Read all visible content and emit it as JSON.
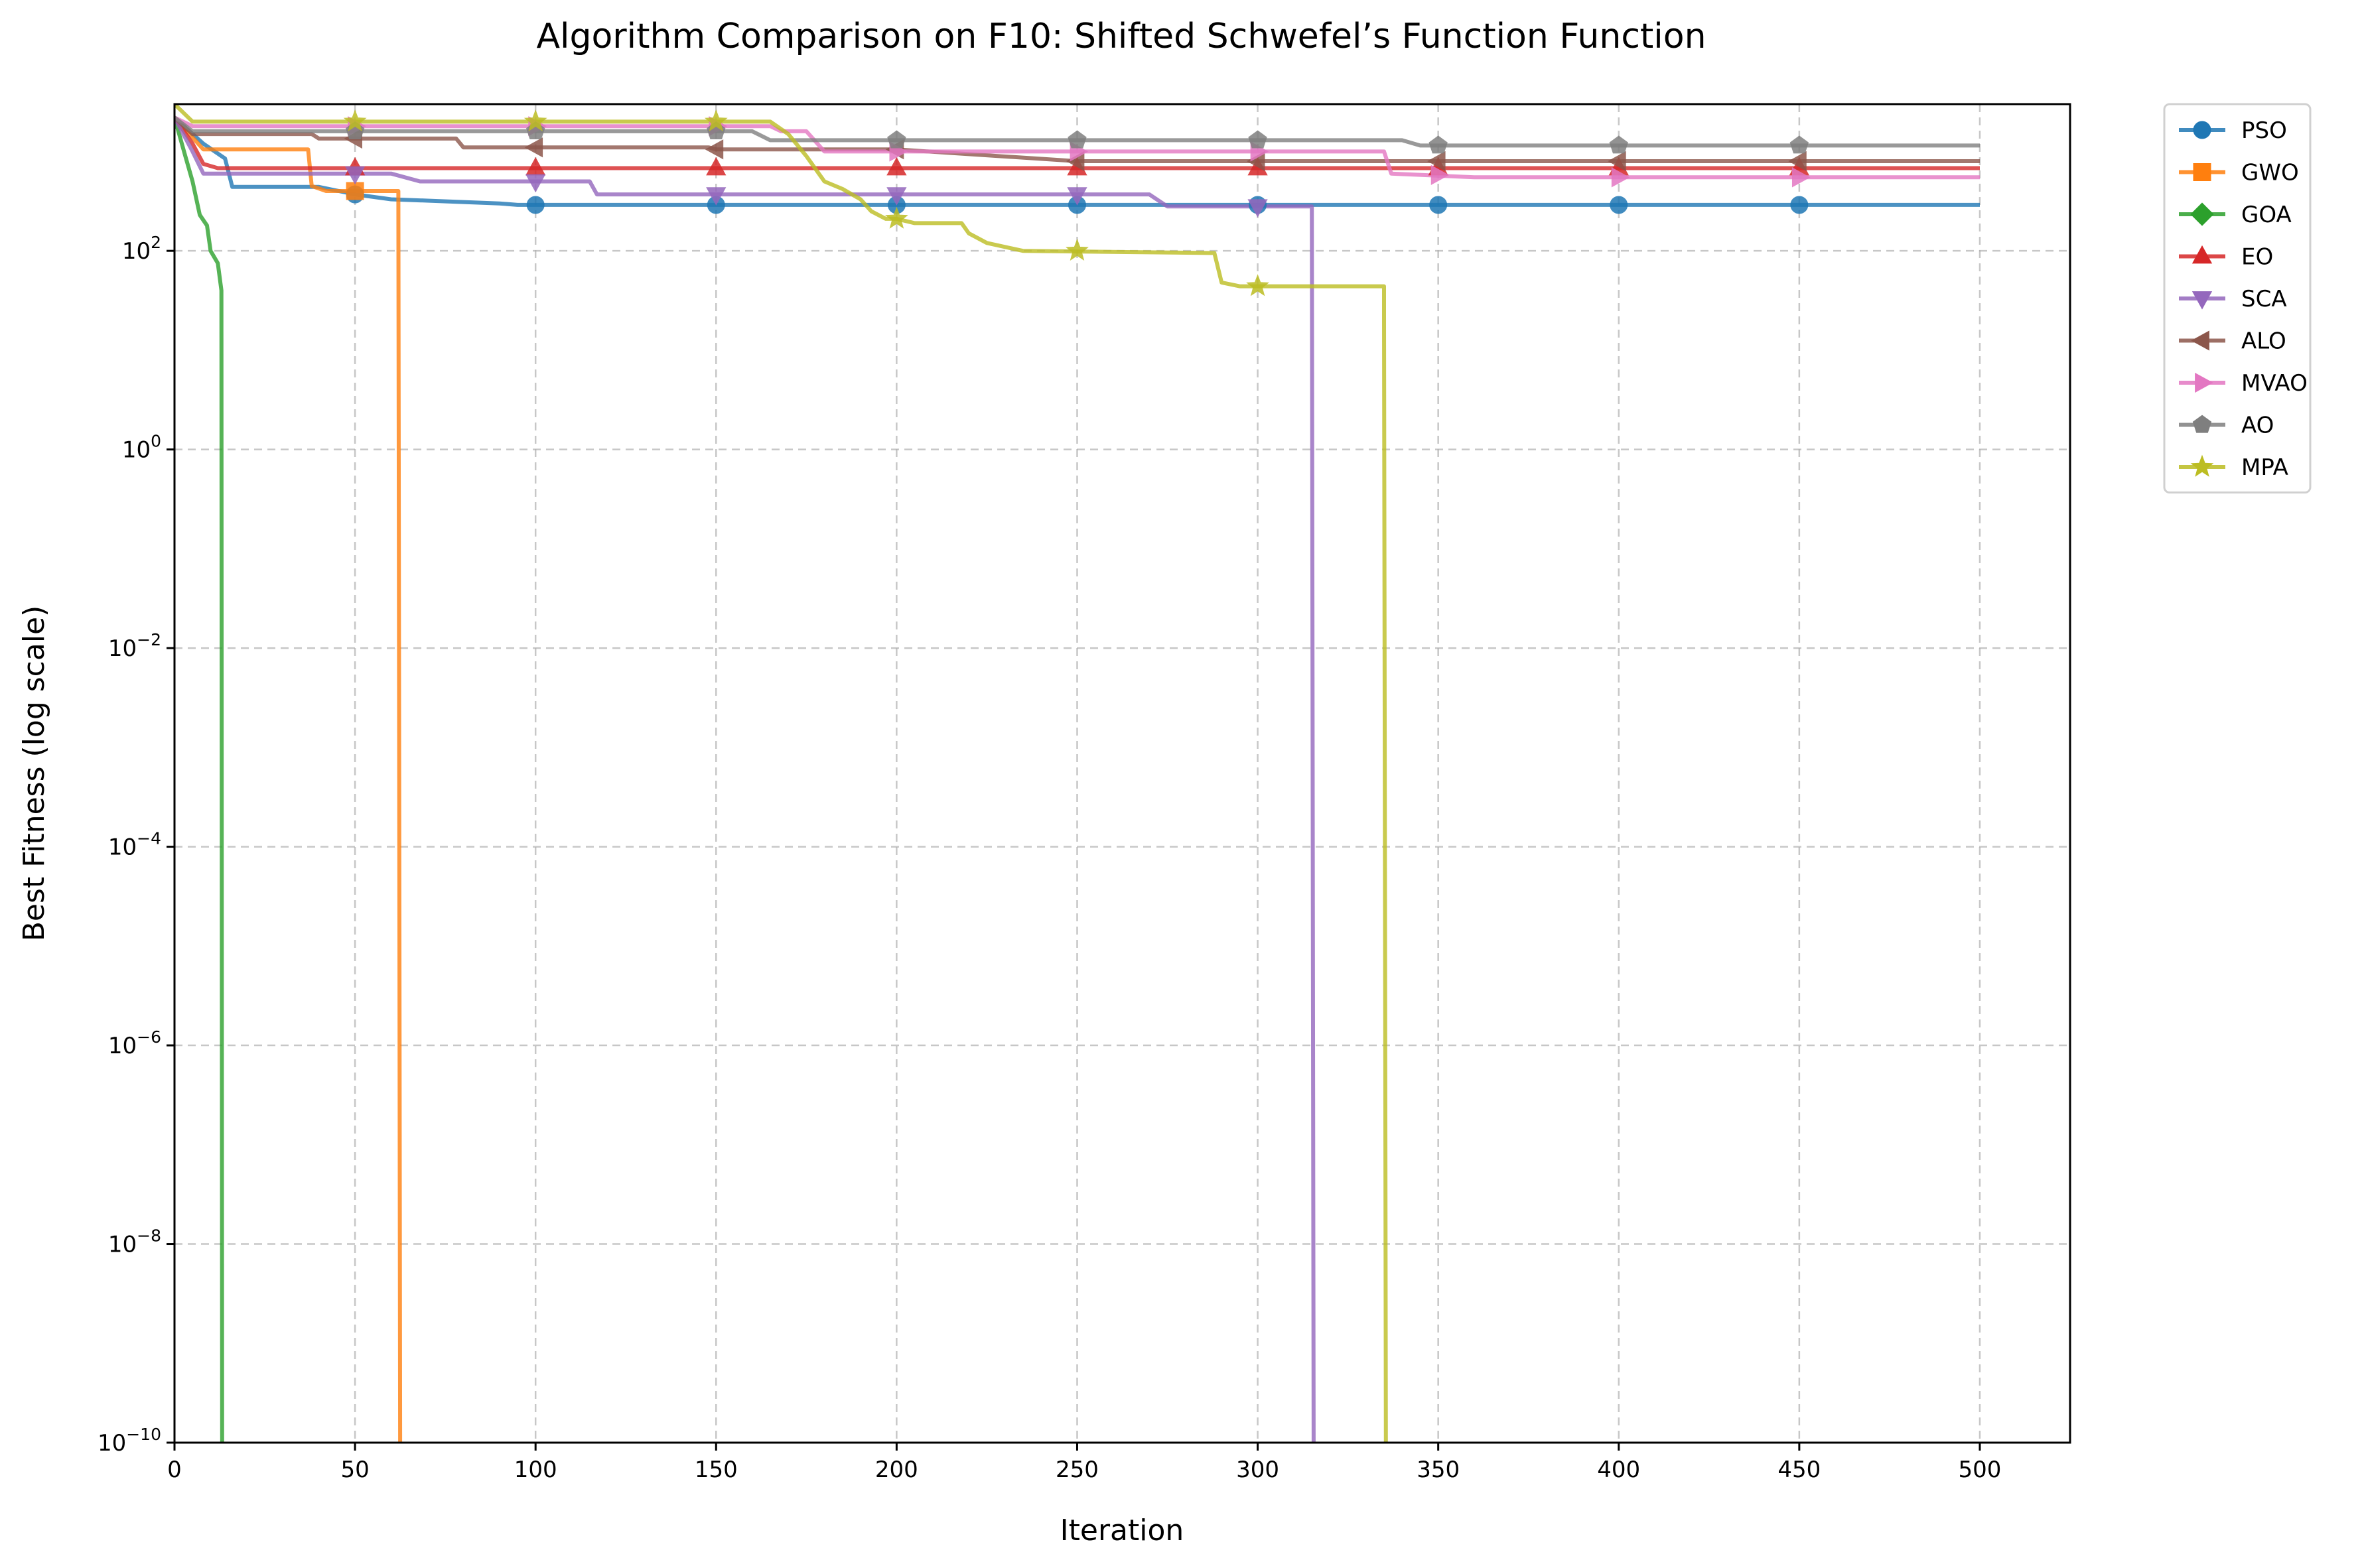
{
  "chart_data": {
    "type": "line",
    "title": "Algorithm Comparison on F10: Shifted Schwefel’s Function Function",
    "xlabel": "Iteration",
    "ylabel": "Best Fitness (log scale)",
    "xlim": [
      0,
      525
    ],
    "ylim": [
      1e-10,
      3000
    ],
    "yscale": "log",
    "grid": true,
    "legend_position": "outside-right-top",
    "x_ticks": [
      0,
      50,
      100,
      150,
      200,
      250,
      300,
      350,
      400,
      450,
      500
    ],
    "y_ticks": [
      {
        "value": 1e-10,
        "base": "10",
        "exp": "−10"
      },
      {
        "value": 1e-08,
        "base": "10",
        "exp": "−8"
      },
      {
        "value": 1e-06,
        "base": "10",
        "exp": "−6"
      },
      {
        "value": 0.0001,
        "base": "10",
        "exp": "−4"
      },
      {
        "value": 0.01,
        "base": "10",
        "exp": "−2"
      },
      {
        "value": 1,
        "base": "10",
        "exp": "0"
      },
      {
        "value": 100,
        "base": "10",
        "exp": "2"
      }
    ],
    "series": [
      {
        "name": "PSO",
        "color": "#1f77b4",
        "marker": "circle",
        "points": [
          [
            0,
            2200
          ],
          [
            8,
            1200
          ],
          [
            14,
            850
          ],
          [
            16,
            440
          ],
          [
            40,
            440
          ],
          [
            50,
            370
          ],
          [
            60,
            330
          ],
          [
            70,
            320
          ],
          [
            80,
            310
          ],
          [
            90,
            300
          ],
          [
            95,
            290
          ],
          [
            100,
            290
          ],
          [
            500,
            290
          ]
        ],
        "markers": [
          [
            50,
            370
          ],
          [
            100,
            290
          ],
          [
            150,
            290
          ],
          [
            200,
            290
          ],
          [
            250,
            290
          ],
          [
            300,
            290
          ],
          [
            350,
            290
          ],
          [
            400,
            290
          ],
          [
            450,
            290
          ]
        ]
      },
      {
        "name": "GWO",
        "color": "#ff7f0e",
        "marker": "square",
        "points": [
          [
            0,
            2200
          ],
          [
            8,
            1050
          ],
          [
            37,
            1050
          ],
          [
            38,
            450
          ],
          [
            42,
            400
          ],
          [
            62,
            400
          ],
          [
            62.5,
            1e-10
          ]
        ],
        "markers": [
          [
            50,
            400
          ]
        ]
      },
      {
        "name": "GOA",
        "color": "#2ca02c",
        "marker": "diamond",
        "points": [
          [
            0,
            2200
          ],
          [
            3,
            900
          ],
          [
            5,
            500
          ],
          [
            7,
            230
          ],
          [
            9,
            180
          ],
          [
            10,
            100
          ],
          [
            12,
            75
          ],
          [
            13,
            40
          ],
          [
            13.2,
            1e-10
          ]
        ],
        "markers": []
      },
      {
        "name": "EO",
        "color": "#d62728",
        "marker": "triangle-up",
        "points": [
          [
            0,
            2200
          ],
          [
            5,
            1200
          ],
          [
            8,
            750
          ],
          [
            12,
            680
          ],
          [
            100,
            680
          ],
          [
            500,
            680
          ]
        ],
        "markers": [
          [
            50,
            680
          ],
          [
            100,
            680
          ],
          [
            150,
            680
          ],
          [
            200,
            680
          ],
          [
            250,
            680
          ],
          [
            300,
            680
          ],
          [
            350,
            680
          ],
          [
            400,
            680
          ],
          [
            450,
            680
          ]
        ]
      },
      {
        "name": "SCA",
        "color": "#9467bd",
        "marker": "triangle-down",
        "points": [
          [
            0,
            2200
          ],
          [
            5,
            1000
          ],
          [
            8,
            600
          ],
          [
            60,
            600
          ],
          [
            68,
            500
          ],
          [
            115,
            500
          ],
          [
            117,
            370
          ],
          [
            270,
            370
          ],
          [
            275,
            280
          ],
          [
            315,
            280
          ],
          [
            315.5,
            1e-10
          ]
        ],
        "markers": [
          [
            50,
            600
          ],
          [
            100,
            500
          ],
          [
            150,
            370
          ],
          [
            200,
            370
          ],
          [
            250,
            370
          ],
          [
            300,
            280
          ]
        ]
      },
      {
        "name": "ALO",
        "color": "#8c564b",
        "marker": "triangle-left",
        "points": [
          [
            0,
            2200
          ],
          [
            5,
            1500
          ],
          [
            38,
            1500
          ],
          [
            40,
            1350
          ],
          [
            78,
            1350
          ],
          [
            80,
            1100
          ],
          [
            148,
            1100
          ],
          [
            150,
            1050
          ],
          [
            200,
            1050
          ],
          [
            250,
            800
          ],
          [
            500,
            800
          ]
        ],
        "markers": [
          [
            50,
            1350
          ],
          [
            100,
            1100
          ],
          [
            150,
            1050
          ],
          [
            200,
            1050
          ],
          [
            250,
            800
          ],
          [
            300,
            800
          ],
          [
            350,
            800
          ],
          [
            400,
            800
          ],
          [
            450,
            800
          ]
        ]
      },
      {
        "name": "MVAO",
        "color": "#e377c2",
        "marker": "triangle-right",
        "points": [
          [
            0,
            2200
          ],
          [
            5,
            1800
          ],
          [
            165,
            1800
          ],
          [
            168,
            1600
          ],
          [
            175,
            1600
          ],
          [
            180,
            1000
          ],
          [
            335,
            1000
          ],
          [
            337,
            600
          ],
          [
            360,
            550
          ],
          [
            500,
            550
          ]
        ],
        "markers": [
          [
            50,
            1800
          ],
          [
            100,
            1800
          ],
          [
            150,
            1800
          ],
          [
            200,
            1000
          ],
          [
            250,
            1000
          ],
          [
            300,
            1000
          ],
          [
            350,
            580
          ],
          [
            400,
            550
          ],
          [
            450,
            550
          ]
        ]
      },
      {
        "name": "AO",
        "color": "#7f7f7f",
        "marker": "pentagon",
        "points": [
          [
            0,
            2200
          ],
          [
            5,
            1600
          ],
          [
            160,
            1600
          ],
          [
            165,
            1300
          ],
          [
            340,
            1300
          ],
          [
            345,
            1150
          ],
          [
            500,
            1150
          ]
        ],
        "markers": [
          [
            50,
            1600
          ],
          [
            100,
            1600
          ],
          [
            150,
            1600
          ],
          [
            200,
            1300
          ],
          [
            250,
            1300
          ],
          [
            300,
            1300
          ],
          [
            350,
            1150
          ],
          [
            400,
            1150
          ],
          [
            450,
            1150
          ]
        ]
      },
      {
        "name": "MPA",
        "color": "#bcbd22",
        "marker": "star",
        "points": [
          [
            0,
            3000
          ],
          [
            5,
            2000
          ],
          [
            165,
            2000
          ],
          [
            170,
            1500
          ],
          [
            175,
            900
          ],
          [
            180,
            500
          ],
          [
            185,
            420
          ],
          [
            190,
            330
          ],
          [
            193,
            250
          ],
          [
            197,
            210
          ],
          [
            200,
            210
          ],
          [
            205,
            190
          ],
          [
            218,
            190
          ],
          [
            220,
            150
          ],
          [
            225,
            120
          ],
          [
            235,
            100
          ],
          [
            288,
            95
          ],
          [
            290,
            48
          ],
          [
            295,
            44
          ],
          [
            335,
            44
          ],
          [
            335,
            22
          ],
          [
            335.5,
            1e-10
          ]
        ],
        "markers": [
          [
            50,
            2000
          ],
          [
            100,
            2000
          ],
          [
            150,
            2000
          ],
          [
            200,
            210
          ],
          [
            250,
            100
          ],
          [
            300,
            44
          ]
        ]
      }
    ]
  }
}
